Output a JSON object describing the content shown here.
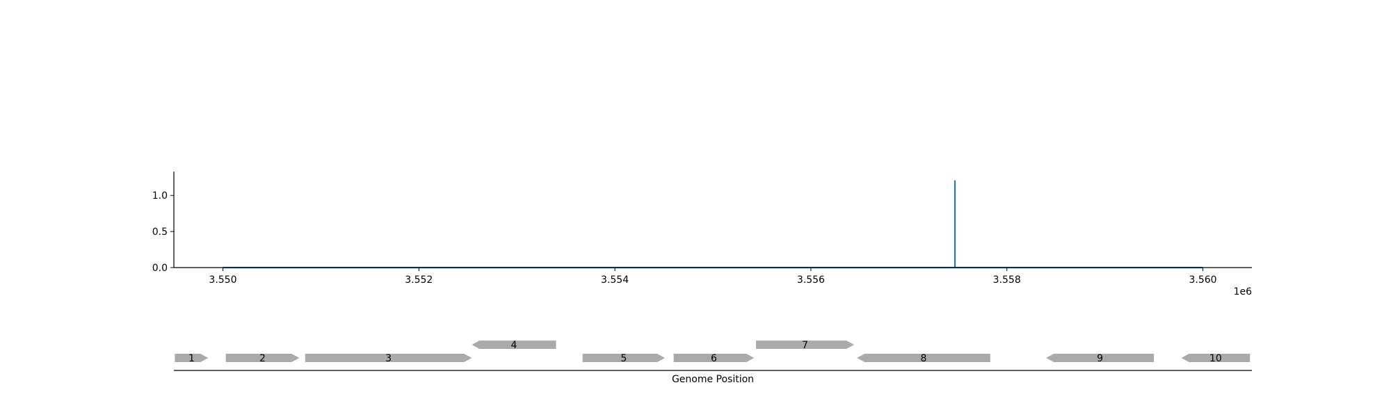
{
  "chart_data": [
    {
      "type": "line",
      "title": "",
      "xlabel": "",
      "ylabel": "",
      "x_offset_label": "1e6",
      "xlim": [
        3549500,
        3560500
      ],
      "ylim": [
        0,
        1.33
      ],
      "xticks": [
        3550000,
        3552000,
        3554000,
        3556000,
        3558000,
        3560000
      ],
      "xtick_labels": [
        "3.550",
        "3.552",
        "3.554",
        "3.556",
        "3.558",
        "3.560"
      ],
      "yticks": [
        0.0,
        0.5,
        1.0
      ],
      "ytick_labels": [
        "0.0",
        "0.5",
        "1.0"
      ],
      "grid": false,
      "series": [
        {
          "color": "#1f77b4",
          "x": [
            3550000,
            3557470,
            3557470,
            3557470,
            3560000
          ],
          "y": [
            0.0,
            0.0,
            1.21,
            0.0,
            0.0
          ]
        }
      ]
    },
    {
      "type": "gene-track",
      "xlabel": "Genome Position",
      "xlim": [
        3549500,
        3560500
      ],
      "feature_color": "#aaaaaa",
      "genes": [
        {
          "label": "1",
          "start": 3549510,
          "end": 3549850,
          "strand": "+",
          "row": 0
        },
        {
          "label": "2",
          "start": 3550030,
          "end": 3550780,
          "strand": "+",
          "row": 0
        },
        {
          "label": "3",
          "start": 3550840,
          "end": 3552540,
          "strand": "+",
          "row": 0
        },
        {
          "label": "4",
          "start": 3552540,
          "end": 3553400,
          "strand": "-",
          "row": 1
        },
        {
          "label": "5",
          "start": 3553670,
          "end": 3554510,
          "strand": "+",
          "row": 0
        },
        {
          "label": "6",
          "start": 3554600,
          "end": 3555420,
          "strand": "+",
          "row": 0
        },
        {
          "label": "7",
          "start": 3555440,
          "end": 3556440,
          "strand": "+",
          "row": 1
        },
        {
          "label": "8",
          "start": 3556470,
          "end": 3557830,
          "strand": "-",
          "row": 0
        },
        {
          "label": "9",
          "start": 3558400,
          "end": 3559500,
          "strand": "-",
          "row": 0
        },
        {
          "label": "10",
          "start": 3559780,
          "end": 3560480,
          "strand": "-",
          "row": 0
        }
      ]
    }
  ]
}
